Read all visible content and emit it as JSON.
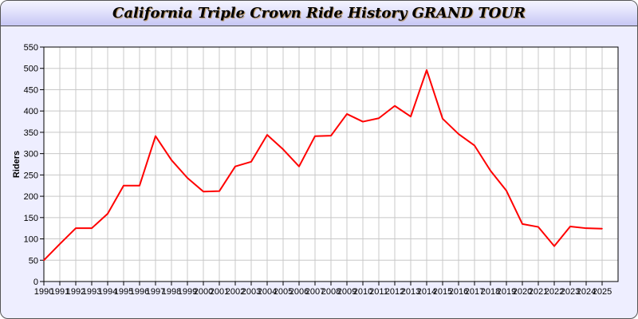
{
  "chart_data": {
    "type": "line",
    "title": "California Triple Crown Ride History GRAND TOUR",
    "xlabel": "",
    "ylabel": "Riders",
    "ylim": [
      0,
      550
    ],
    "yticks": [
      0,
      50,
      100,
      150,
      200,
      250,
      300,
      350,
      400,
      450,
      500,
      550
    ],
    "grid": true,
    "line_color": "#ff0000",
    "x": [
      1990,
      1991,
      1992,
      1993,
      1994,
      1995,
      1996,
      1997,
      1998,
      1999,
      2000,
      2001,
      2002,
      2003,
      2004,
      2005,
      2006,
      2007,
      2008,
      2009,
      2010,
      2011,
      2012,
      2013,
      2014,
      2015,
      2016,
      2017,
      2018,
      2019,
      2020,
      2021,
      2022,
      2023,
      2024,
      2025
    ],
    "series": [
      {
        "values": [
          50,
          88,
          125,
          125,
          159,
          225,
          225,
          341,
          285,
          243,
          211,
          212,
          270,
          281,
          344,
          310,
          270,
          341,
          342,
          393,
          375,
          383,
          412,
          387,
          496,
          382,
          346,
          319,
          260,
          213,
          135,
          128,
          83,
          129,
          125,
          124
        ]
      }
    ]
  }
}
